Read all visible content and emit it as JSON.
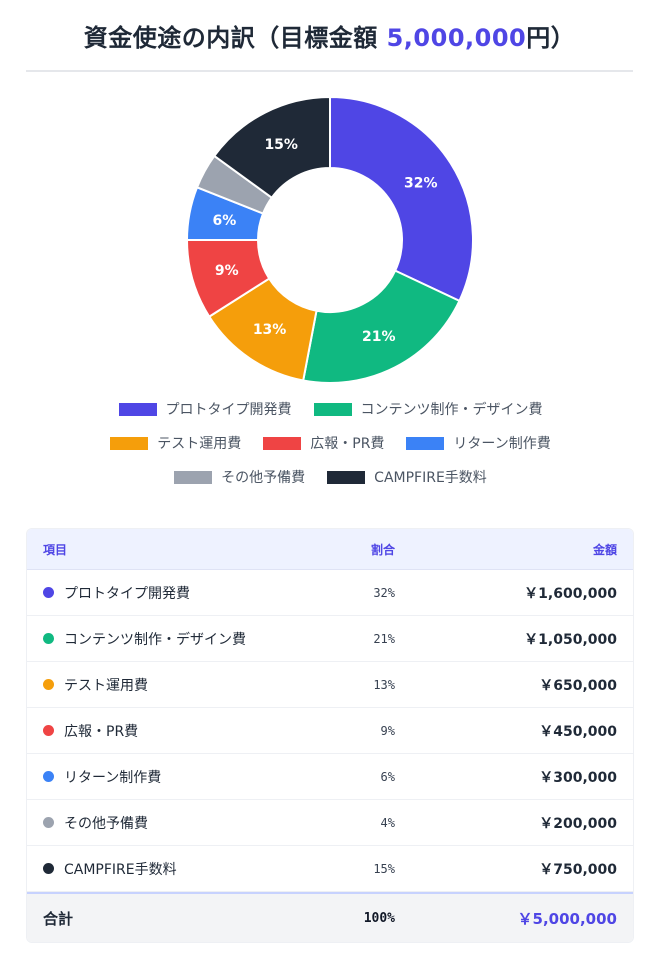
{
  "header": {
    "title_prefix": "資金使途の内訳（目標金額 ",
    "title_amount": "5,000,000",
    "title_suffix": "円）"
  },
  "chart_data": {
    "type": "pie",
    "donut": true,
    "legend_position": "bottom",
    "categories": [
      "プロトタイプ開発費",
      "コンテンツ制作・デザイン費",
      "テスト運用費",
      "広報・PR費",
      "リターン制作費",
      "その他予備費",
      "CAMPFIRE手数料"
    ],
    "values": [
      32,
      21,
      13,
      9,
      6,
      4,
      15
    ],
    "labels": [
      "32%",
      "21%",
      "13%",
      "9%",
      "6%",
      "",
      "15%"
    ],
    "colors": [
      "#4f46e5",
      "#10b981",
      "#f59e0b",
      "#ef4444",
      "#3b82f6",
      "#9ca3af",
      "#1f2937"
    ]
  },
  "legend": {
    "rows": [
      [
        0,
        1
      ],
      [
        2,
        3,
        4
      ],
      [
        5,
        6
      ]
    ]
  },
  "table": {
    "headers": {
      "item": "項目",
      "pct": "割合",
      "amount": "金額"
    },
    "rows": [
      {
        "name": "プロトタイプ開発費",
        "pct": "32%",
        "amount": "￥1,600,000",
        "color": "#4f46e5"
      },
      {
        "name": "コンテンツ制作・デザイン費",
        "pct": "21%",
        "amount": "￥1,050,000",
        "color": "#10b981"
      },
      {
        "name": "テスト運用費",
        "pct": "13%",
        "amount": "￥650,000",
        "color": "#f59e0b"
      },
      {
        "name": "広報・PR費",
        "pct": "9%",
        "amount": "￥450,000",
        "color": "#ef4444"
      },
      {
        "name": "リターン制作費",
        "pct": "6%",
        "amount": "￥300,000",
        "color": "#3b82f6"
      },
      {
        "name": "その他予備費",
        "pct": "4%",
        "amount": "￥200,000",
        "color": "#9ca3af"
      },
      {
        "name": "CAMPFIRE手数料",
        "pct": "15%",
        "amount": "￥750,000",
        "color": "#1f2937"
      }
    ],
    "total": {
      "label": "合計",
      "pct": "100%",
      "amount": "￥5,000,000"
    }
  }
}
